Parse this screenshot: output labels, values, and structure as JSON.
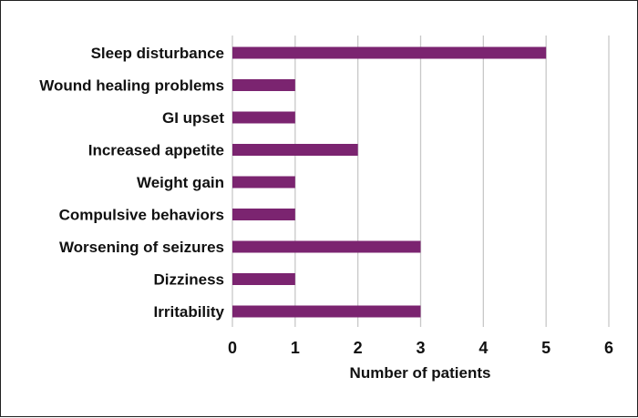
{
  "chart_data": {
    "type": "bar",
    "orientation": "horizontal",
    "title": "",
    "xlabel": "Number of patients",
    "ylabel": "",
    "categories": [
      "Sleep disturbance",
      "Wound healing problems",
      "GI upset",
      "Increased appetite",
      "Weight gain",
      "Compulsive behaviors",
      "Worsening of seizures",
      "Dizziness",
      "Irritability"
    ],
    "values": [
      5,
      1,
      1,
      2,
      1,
      1,
      3,
      1,
      3
    ],
    "xlim": [
      0,
      6
    ],
    "xticks": [
      "0",
      "1",
      "2",
      "3",
      "4",
      "5",
      "6"
    ],
    "grid": true,
    "legend": "none",
    "bar_color": "#7b2470",
    "grid_color": "#c8c8c8"
  }
}
